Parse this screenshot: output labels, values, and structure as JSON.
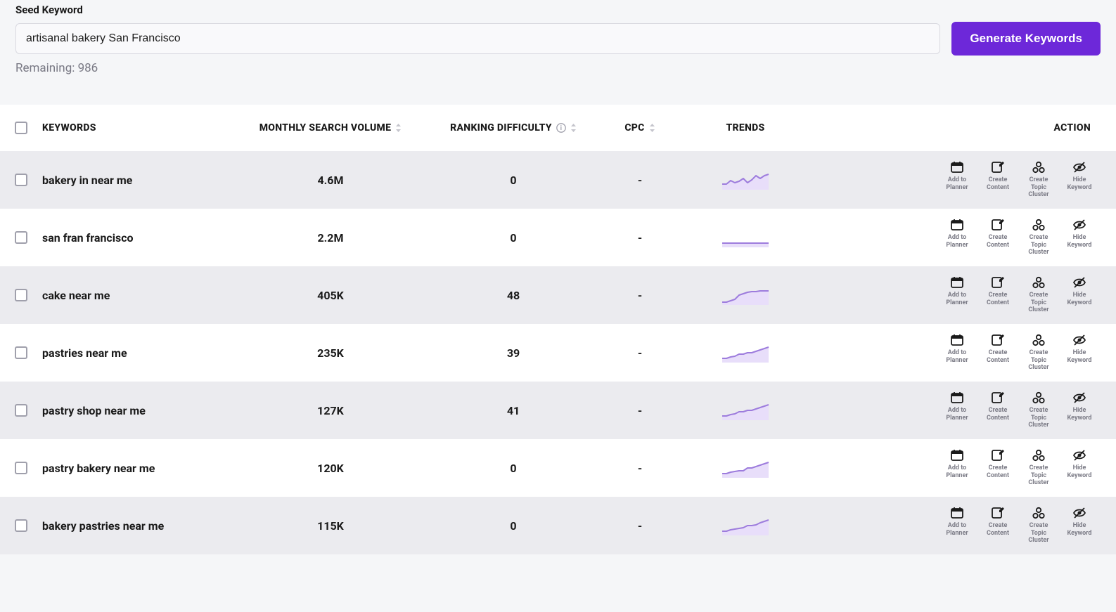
{
  "seed": {
    "label": "Seed Keyword",
    "value": "artisanal bakery San Francisco",
    "generate_label": "Generate Keywords",
    "remaining_text": "Remaining: 986"
  },
  "colors": {
    "accent": "#6d28d9",
    "trend_stroke": "#9d7cdd",
    "trend_fill": "#e8defa",
    "row_odd": "#ebebef",
    "row_even": "#ffffff",
    "text": "#1a1a1a",
    "muted": "#7a7a85",
    "border": "#a0a0ac"
  },
  "table": {
    "headers": {
      "keywords": "KEYWORDS",
      "volume": "MONTHLY SEARCH VOLUME",
      "difficulty": "RANKING DIFFICULTY",
      "cpc": "CPC",
      "trends": "TRENDS",
      "action": "ACTION"
    },
    "action_labels": {
      "planner": "Add to Planner",
      "content": "Create Content",
      "cluster": "Create Topic Cluster",
      "hide": "Hide Keyword"
    },
    "rows": [
      {
        "keyword": "bakery in near me",
        "volume": "4.6M",
        "difficulty": "0",
        "cpc": "-",
        "trend": [
          20,
          20,
          15,
          18,
          16,
          12,
          18,
          14,
          8,
          12,
          8,
          6
        ]
      },
      {
        "keyword": "san fran francisco",
        "volume": "2.2M",
        "difficulty": "0",
        "cpc": "-",
        "trend": [
          22,
          22,
          22,
          22,
          22,
          22,
          22,
          22,
          22,
          22,
          22,
          22
        ]
      },
      {
        "keyword": "cake near me",
        "volume": "405K",
        "difficulty": "48",
        "cpc": "-",
        "trend": [
          24,
          24,
          22,
          20,
          14,
          12,
          10,
          9,
          9,
          8,
          8,
          8
        ]
      },
      {
        "keyword": "pastries near me",
        "volume": "235K",
        "difficulty": "39",
        "cpc": "-",
        "trend": [
          22,
          22,
          20,
          19,
          16,
          16,
          14,
          14,
          12,
          10,
          8,
          6
        ]
      },
      {
        "keyword": "pastry shop near me",
        "volume": "127K",
        "difficulty": "41",
        "cpc": "-",
        "trend": [
          22,
          22,
          20,
          19,
          16,
          16,
          14,
          14,
          12,
          10,
          8,
          6
        ]
      },
      {
        "keyword": "pastry bakery near me",
        "volume": "120K",
        "difficulty": "0",
        "cpc": "-",
        "trend": [
          22,
          22,
          20,
          19,
          18,
          18,
          14,
          14,
          12,
          10,
          8,
          6
        ]
      },
      {
        "keyword": "bakery pastries near me",
        "volume": "115K",
        "difficulty": "0",
        "cpc": "-",
        "trend": [
          22,
          22,
          20,
          19,
          18,
          17,
          14,
          14,
          13,
          10,
          8,
          6
        ]
      }
    ]
  }
}
